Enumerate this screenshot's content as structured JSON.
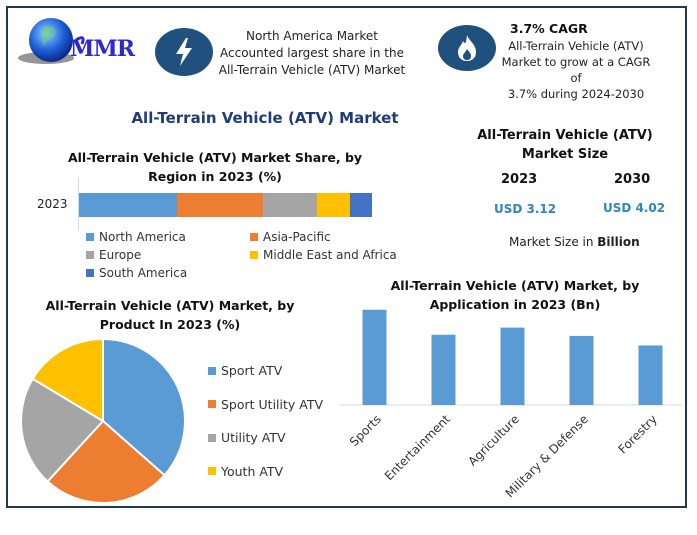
{
  "brand": {
    "logo_text": "MMR"
  },
  "highlights": [
    {
      "icon": "lightning-icon",
      "lines": [
        "North America Market",
        "Accounted largest share in the",
        "All-Terrain Vehicle (ATV) Market"
      ]
    },
    {
      "icon": "flame-icon",
      "headline": "3.7% CAGR",
      "lines": [
        "All-Terrain Vehicle (ATV)",
        "Market to grow at a CAGR of",
        "3.7% during 2024-2030"
      ]
    }
  ],
  "main_title": "All-Terrain Vehicle (ATV) Market",
  "market_size": {
    "title_line1": "All-Terrain Vehicle (ATV)",
    "title_line2": "Market Size",
    "years": [
      {
        "year": "2023",
        "value": "USD 3.12"
      },
      {
        "year": "2030",
        "value": "USD 4.02"
      }
    ],
    "note_prefix": "Market Size in ",
    "note_bold": "Billion"
  },
  "colors": {
    "north_america": "#5b9bd5",
    "asia_pacific": "#ed7d31",
    "europe": "#a5a5a5",
    "mea": "#ffc000",
    "south_america": "#4472c4",
    "icon_circle": "#20507e",
    "frame": "#1f3a4d"
  },
  "chart_data": [
    {
      "type": "bar",
      "orientation": "horizontal-stacked",
      "title_line1": "All-Terrain Vehicle (ATV) Market Share, by",
      "title_line2": "Region in 2023 (%)",
      "categories": [
        "2023"
      ],
      "series": [
        {
          "name": "North America",
          "values": [
            33.6
          ],
          "color": "#5b9bd5"
        },
        {
          "name": "Asia-Pacific",
          "values": [
            29.1
          ],
          "color": "#ed7d31"
        },
        {
          "name": "Europe",
          "values": [
            18.6
          ],
          "color": "#a5a5a5"
        },
        {
          "name": "Middle East and Africa",
          "values": [
            11.3
          ],
          "color": "#ffc000"
        },
        {
          "name": "South America",
          "values": [
            7.4
          ],
          "color": "#4472c4"
        }
      ],
      "xlim": [
        0,
        100
      ],
      "legend": "bottom"
    },
    {
      "type": "pie",
      "title_line1": "All-Terrain Vehicle (ATV) Market, by",
      "title_line2": "Product In 2023 (%)",
      "slices": [
        {
          "label": "Sport ATV",
          "value": 36.5,
          "color": "#5b9bd5"
        },
        {
          "label": "Sport Utility ATV",
          "value": 25.3,
          "color": "#ed7d31"
        },
        {
          "label": "Utility ATV",
          "value": 21.8,
          "color": "#a5a5a5"
        },
        {
          "label": "Youth ATV",
          "value": 16.4,
          "color": "#ffc000"
        }
      ],
      "legend": "right"
    },
    {
      "type": "bar",
      "title_line1": "All-Terrain Vehicle (ATV) Market, by",
      "title_line2": "Application in 2023 (Bn)",
      "categories": [
        "Sports",
        "Entertainment",
        "Agriculture",
        "Military & Defense",
        "Forestry"
      ],
      "values": [
        0.8,
        0.59,
        0.65,
        0.58,
        0.5
      ],
      "color": "#5b9bd5",
      "ylim": [
        0,
        0.84
      ],
      "grid": false
    }
  ]
}
